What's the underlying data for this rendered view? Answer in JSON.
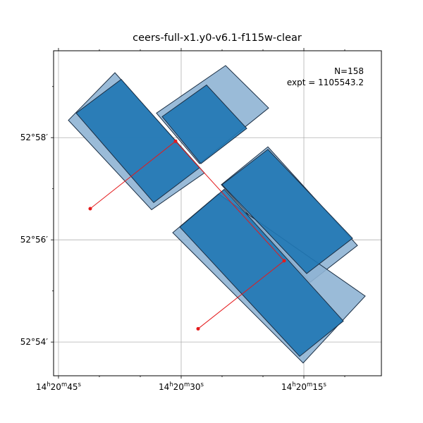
{
  "chart_data": {
    "type": "footprint",
    "title": "ceers-full-x1.y0-v6.1-f115w-clear",
    "annotations": [
      "N=158",
      "expt = 1105543.2"
    ],
    "xlim": [
      45.6,
      5.52
    ],
    "ylim": [
      53.34,
      59.7
    ],
    "xticks": [
      {
        "value": 45,
        "label": "14h20m45s"
      },
      {
        "value": 30,
        "label": "14h20m30s"
      },
      {
        "value": 15,
        "label": "14h20m15s"
      }
    ],
    "yticks": [
      {
        "value": 58,
        "label": "52°58′"
      },
      {
        "value": 56,
        "label": "52°56′"
      },
      {
        "value": 54,
        "label": "52°54′"
      }
    ],
    "xminorticks": [
      40,
      35,
      25,
      20,
      10
    ],
    "yminorticks": [
      59,
      57,
      55
    ],
    "grid": true,
    "footprints": [
      {
        "color": "#8fb4d4",
        "x": [
          43.79,
          38.1,
          27.16,
          33.62
        ],
        "y": [
          58.34,
          59.27,
          57.31,
          56.59
        ]
      },
      {
        "color": "#8fb4d4",
        "x": [
          33.02,
          24.57,
          19.31,
          27.76
        ],
        "y": [
          58.48,
          59.41,
          58.58,
          57.49
        ]
      },
      {
        "color": "#8fb4d4",
        "x": [
          25.09,
          19.4,
          8.45,
          14.22
        ],
        "y": [
          57.08,
          57.82,
          55.89,
          55.17
        ]
      },
      {
        "color": "#8fb4d4",
        "x": [
          31.03,
          25.43,
          7.5,
          15.09
        ],
        "y": [
          56.14,
          56.9,
          54.9,
          53.59
        ]
      },
      {
        "color": "#1f77b4",
        "x": [
          42.84,
          37.33,
          27.76,
          33.36
        ],
        "y": [
          58.48,
          59.14,
          57.41,
          56.73
        ]
      },
      {
        "color": "#1f77b4",
        "x": [
          32.33,
          26.9,
          21.98,
          27.59
        ],
        "y": [
          58.41,
          59.03,
          58.18,
          57.49
        ]
      },
      {
        "color": "#1f77b4",
        "x": [
          25.0,
          19.4,
          9.05,
          14.66
        ],
        "y": [
          57.08,
          57.77,
          56.03,
          55.34
        ]
      },
      {
        "color": "#1f77b4",
        "x": [
          30.17,
          24.74,
          10.17,
          15.52
        ],
        "y": [
          56.25,
          56.99,
          54.41,
          53.72
        ]
      }
    ],
    "track": {
      "color": "#e41a1c",
      "x": [
        41.12,
        30.69,
        17.41,
        27.93
      ],
      "y": [
        56.61,
        57.93,
        55.59,
        54.26
      ]
    }
  }
}
